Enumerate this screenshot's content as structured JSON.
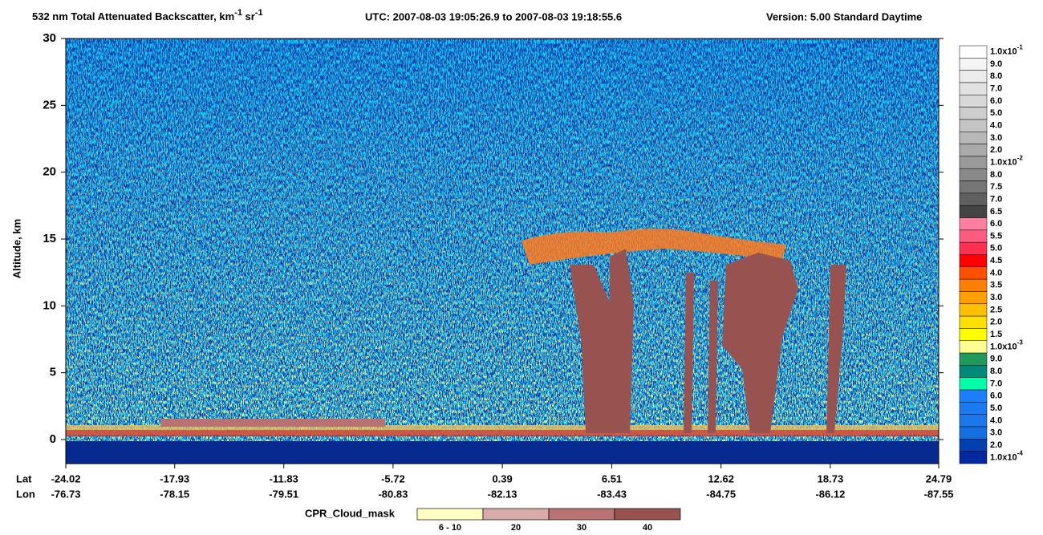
{
  "chart_data": {
    "type": "heatmap",
    "title_parts": [
      "532 nm Total Attenuated Backscatter, km",
      "-1",
      " sr",
      "-1"
    ],
    "utc": "UTC:  2007-08-03 19:05:26.9  to  2007-08-03 19:18:55.6",
    "version": "Version: 5.00  Standard  Daytime",
    "ylabel": "Altitude, km",
    "ylim": [
      -1.8,
      30
    ],
    "yticks": [
      0,
      5,
      10,
      15,
      20,
      25,
      30
    ],
    "xlim": [
      -24.02,
      24.79
    ],
    "lat_label": "Lat",
    "lon_label": "Lon",
    "xticks": [
      -24.02,
      -17.93,
      -11.83,
      -5.72,
      0.39,
      6.51,
      12.62,
      18.73,
      24.79
    ],
    "lon": [
      "-76.73",
      "-78.15",
      "-79.51",
      "-80.83",
      "-82.13",
      "-83.43",
      "-84.75",
      "-86.12",
      "-87.55"
    ],
    "colorbar": {
      "labels": [
        {
          "text": "1.0x10",
          "exp": "-1"
        },
        "9.0",
        "8.0",
        "7.0",
        "6.0",
        "5.0",
        "4.0",
        "3.0",
        "2.0",
        {
          "text": "1.0x10",
          "exp": "-2"
        },
        "8.0",
        "7.5",
        "7.0",
        "6.5",
        "6.0",
        "5.5",
        "5.0",
        "4.5",
        "4.0",
        "3.5",
        "3.0",
        "2.5",
        "2.0",
        "1.5",
        {
          "text": "1.0x10",
          "exp": "-3"
        },
        "9.0",
        "8.0",
        "7.0",
        "6.0",
        "5.0",
        "4.0",
        "3.0",
        "2.0",
        {
          "text": "1.0x10",
          "exp": "-4"
        }
      ],
      "colors": [
        "#ffffff",
        "#f5f5f5",
        "#ececec",
        "#e2e2e2",
        "#d8d8d8",
        "#cecece",
        "#c4c4c4",
        "#b8b8b8",
        "#aaaaaa",
        "#9a9a9a",
        "#8a8a8a",
        "#767676",
        "#606060",
        "#444444",
        "#ff80a0",
        "#ff5a80",
        "#ff3050",
        "#ff0000",
        "#ff5000",
        "#ff8000",
        "#ffa000",
        "#ffc000",
        "#ffe000",
        "#ffff00",
        "#ffff90",
        "#1f9a5a",
        "#008878",
        "#00ffa8",
        "#1a80ff",
        "#1a7af0",
        "#1a78ea",
        "#1470e0",
        "#0040b0",
        "#0028a0"
      ]
    },
    "cpr": {
      "label": "CPR_Cloud_mask",
      "labels": [
        "6 - 10",
        "20",
        "30",
        "40"
      ],
      "colors": [
        "#ffffc4",
        "#d8aaa8",
        "#b87272",
        "#985250"
      ]
    }
  }
}
